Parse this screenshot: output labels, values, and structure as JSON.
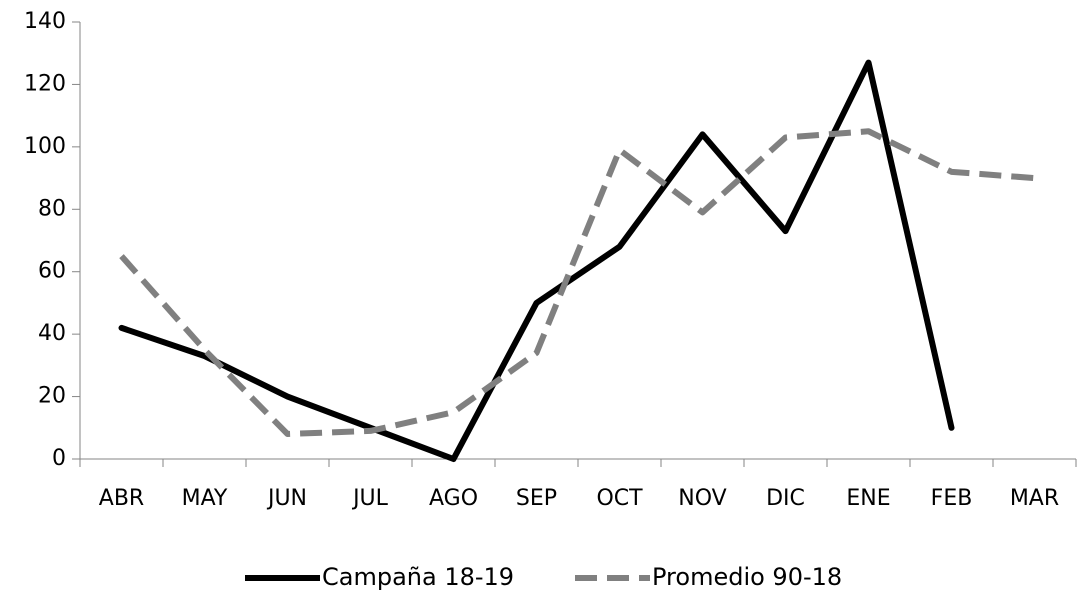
{
  "chart_data": {
    "type": "line",
    "categories": [
      "ABR",
      "MAY",
      "JUN",
      "JUL",
      "AGO",
      "SEP",
      "OCT",
      "NOV",
      "DIC",
      "ENE",
      "FEB",
      "MAR"
    ],
    "series": [
      {
        "name": "Campaña 18-19",
        "color": "#000000",
        "dash": false,
        "values": [
          42,
          33,
          20,
          10,
          0,
          50,
          68,
          104,
          73,
          127,
          10,
          null
        ]
      },
      {
        "name": "Promedio 90-18",
        "color": "#808080",
        "dash": true,
        "values": [
          65,
          35,
          8,
          9,
          15,
          34,
          99,
          79,
          103,
          105,
          92,
          90
        ]
      }
    ],
    "ylim": [
      0,
      140
    ],
    "yticks": [
      0,
      20,
      40,
      60,
      80,
      100,
      120,
      140
    ],
    "grid": false,
    "legend": "bottom"
  }
}
